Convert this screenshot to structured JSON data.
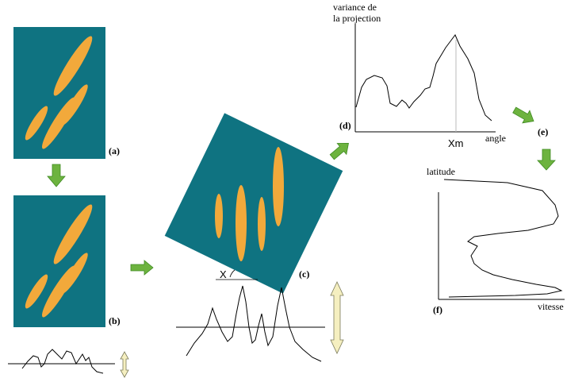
{
  "colors": {
    "panel": "#0f7381",
    "streak": "#f2a93b",
    "arrow": "#6db33f",
    "arrow_dark": "#3f8a22",
    "double_arrow": "#f5efc0",
    "double_arrow_stroke": "#7b7b5a",
    "curve": "#000000",
    "guide": "#bbbbbb"
  },
  "panel_labels": {
    "a": "(a)",
    "b": "(b)",
    "c": "(c)",
    "d": "(d)",
    "e": "(e)",
    "f": "(f)"
  },
  "plot_d": {
    "y_label_line1": "variance de",
    "y_label_line2": "la projection",
    "x_label": "angle",
    "peak_label": "Xm"
  },
  "plot_f": {
    "y_label": "latitude",
    "x_label": "vitesse"
  },
  "rotated_panel": {
    "angle_label": "X"
  },
  "icons": {
    "down_arrow": "arrow-down-icon",
    "right_arrow": "arrow-right-icon",
    "double_arrow": "double-arrow-icon"
  }
}
